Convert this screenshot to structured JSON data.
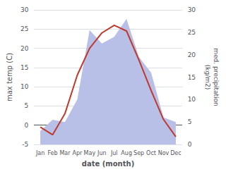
{
  "chart_data": {
    "type": "line",
    "categories": [
      "Jan",
      "Feb",
      "Mar",
      "Apr",
      "May",
      "Jun",
      "Jul",
      "Aug",
      "Sep",
      "Oct",
      "Nov",
      "Dec"
    ],
    "xlabel": "date (month)",
    "ylabel": "max temp (C)",
    "y2label": "med. precipitation\n(kg/m2)",
    "ylim": [
      -5,
      30
    ],
    "yticks": [
      -5,
      0,
      5,
      10,
      15,
      20,
      25,
      30
    ],
    "y2lim": [
      0,
      30
    ],
    "y2ticks": [
      0,
      5,
      10,
      15,
      20,
      25,
      30
    ],
    "grid": true,
    "series": [
      {
        "type": "area",
        "axis": "y2",
        "color": "#b8c0e8",
        "values": [
          3.0,
          5.5,
          5.0,
          10.0,
          25.5,
          22.5,
          24.0,
          28.0,
          19.5,
          16.0,
          6.0,
          5.0
        ]
      },
      {
        "type": "line",
        "color": "#c0392b",
        "values": [
          -0.5,
          -2.5,
          3.0,
          13.0,
          20.0,
          24.0,
          26.0,
          24.5,
          17.0,
          9.0,
          1.5,
          -3.0
        ]
      }
    ]
  }
}
